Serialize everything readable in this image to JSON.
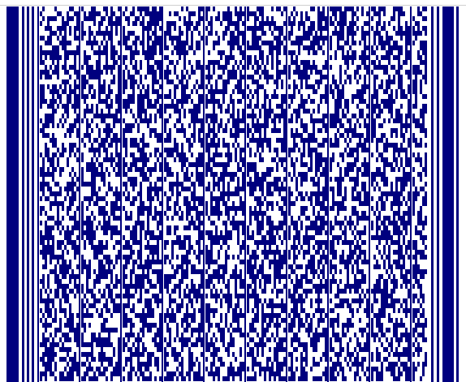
{
  "image": {
    "kind": "pdf417-style-barcode",
    "colors": {
      "bar": "#00007f",
      "space": "#ffffff"
    }
  }
}
